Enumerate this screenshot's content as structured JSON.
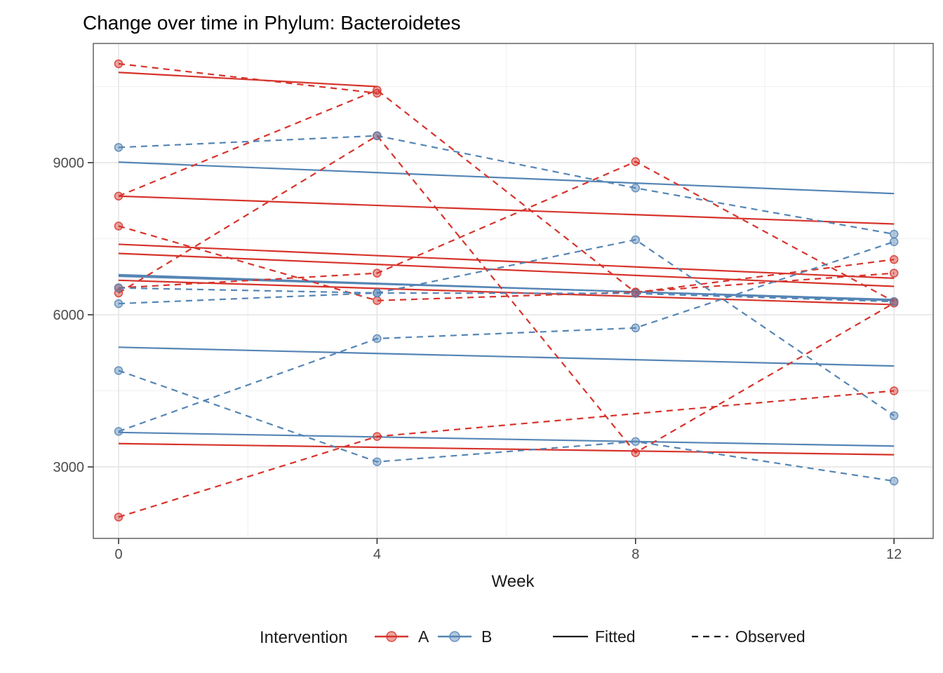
{
  "title": "Change over time in Phylum: Bacteroidetes",
  "x_axis": {
    "label": "Week",
    "ticks": [
      "0",
      "4",
      "8",
      "12"
    ],
    "tick_values": [
      0,
      4,
      8,
      12
    ]
  },
  "y_axis": {
    "ticks": [
      "3000",
      "6000",
      "9000"
    ],
    "tick_values": [
      3000,
      6000,
      9000
    ],
    "minor_values": [
      4500,
      7500,
      10500
    ],
    "range": [
      1590,
      11350
    ]
  },
  "x_minor_values": [
    2,
    6,
    10
  ],
  "legend": {
    "title": "Intervention",
    "groups": [
      {
        "label": "A",
        "color": "#d6342c"
      },
      {
        "label": "B",
        "color": "#5585b5"
      }
    ],
    "linetypes": [
      {
        "label": "Fitted",
        "style": "solid"
      },
      {
        "label": "Observed",
        "style": "dashed"
      }
    ],
    "key_color": "#1a1a1a"
  },
  "colors": {
    "A": "#d6342c",
    "B": "#5585b5",
    "grid_major": "#e4e4e4",
    "grid_minor": "#f2f2f2",
    "panel_border": "#4a4a4a",
    "tick": "#333333"
  },
  "chart_data": {
    "type": "line",
    "title": "Change over time in Phylum: Bacteroidetes",
    "xlabel": "Week",
    "ylabel": "",
    "x": [
      0,
      4,
      8,
      12
    ],
    "xlim": [
      -0.4,
      12.6
    ],
    "ylim": [
      1590,
      11350
    ],
    "grid": true,
    "legend_position": "bottom",
    "series_note": "each subject has an Observed dashed line with points and a Fitted solid line",
    "subjects": [
      {
        "id": "A1",
        "group": "A",
        "observed": [
          10950,
          10370,
          null,
          null
        ],
        "fitted_weeks": [
          0,
          4
        ],
        "fitted": [
          10780,
          10500
        ]
      },
      {
        "id": "A2",
        "group": "A",
        "observed": [
          8340,
          10430,
          6440,
          7090
        ],
        "fitted_weeks": [
          0,
          12
        ],
        "fitted": [
          8340,
          7790
        ]
      },
      {
        "id": "A3",
        "group": "A",
        "observed": [
          7750,
          6280,
          6450,
          6820
        ],
        "fitted_weeks": [
          0,
          12
        ],
        "fitted": [
          7390,
          6720
        ]
      },
      {
        "id": "A4",
        "group": "A",
        "observed": [
          6530,
          6820,
          9020,
          6260
        ],
        "fitted_weeks": [
          0,
          12
        ],
        "fitted": [
          7210,
          6560
        ]
      },
      {
        "id": "A5",
        "group": "A",
        "observed": [
          6430,
          9530,
          3280,
          6230
        ],
        "fitted_weeks": [
          0,
          12
        ],
        "fitted": [
          6680,
          6200
        ]
      },
      {
        "id": "A6",
        "group": "A",
        "observed": [
          2010,
          3600,
          null,
          4500
        ],
        "fitted_weeks": [
          0,
          12
        ],
        "fitted": [
          3460,
          3240
        ]
      },
      {
        "id": "B1",
        "group": "B",
        "observed": [
          9300,
          9530,
          8500,
          7590
        ],
        "fitted_weeks": [
          0,
          12
        ],
        "fitted": [
          9010,
          8390
        ]
      },
      {
        "id": "B2",
        "group": "B",
        "observed": [
          6530,
          6430,
          7480,
          4010
        ],
        "fitted_weeks": [
          0,
          12
        ],
        "fitted": [
          6790,
          6280
        ]
      },
      {
        "id": "B3",
        "group": "B",
        "observed": [
          6220,
          6430,
          6420,
          6260
        ],
        "fitted_weeks": [
          0,
          12
        ],
        "fitted": [
          6760,
          6300
        ]
      },
      {
        "id": "B4",
        "group": "B",
        "observed": [
          4900,
          3100,
          3500,
          2720
        ],
        "fitted_weeks": [
          0,
          12
        ],
        "fitted": [
          3680,
          3410
        ]
      },
      {
        "id": "B5",
        "group": "B",
        "observed": [
          3700,
          5530,
          5740,
          7440
        ],
        "fitted_weeks": [
          0,
          12
        ],
        "fitted": [
          5360,
          4990
        ]
      }
    ]
  }
}
